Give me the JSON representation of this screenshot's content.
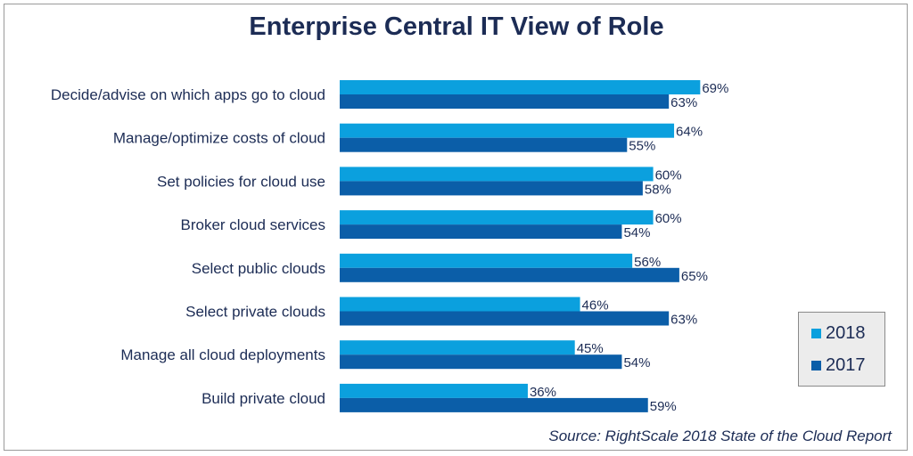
{
  "source": "Source: RightScale 2018 State of the Cloud Report",
  "chart_data": {
    "type": "bar",
    "orientation": "horizontal",
    "title": "Enterprise Central IT View of Role",
    "categories": [
      "Decide/advise on which apps go to cloud",
      "Manage/optimize costs of cloud",
      "Set policies for cloud use",
      "Broker cloud services",
      "Select public clouds",
      "Select private clouds",
      "Manage all cloud deployments",
      "Build private cloud"
    ],
    "series": [
      {
        "name": "2018",
        "color": "#0ba0de",
        "values": [
          69,
          64,
          60,
          60,
          56,
          46,
          45,
          36
        ],
        "labels": [
          "69%",
          "64%",
          "60%",
          "60%",
          "56%",
          "46%",
          "45%",
          "36%"
        ]
      },
      {
        "name": "2017",
        "color": "#0b5ea8",
        "values": [
          63,
          55,
          58,
          54,
          65,
          63,
          54,
          59
        ],
        "labels": [
          "63%",
          "55%",
          "58%",
          "54%",
          "65%",
          "63%",
          "54%",
          "59%"
        ]
      }
    ],
    "xlim": [
      0,
      100
    ],
    "grid": false,
    "legend": "bottom-right"
  }
}
